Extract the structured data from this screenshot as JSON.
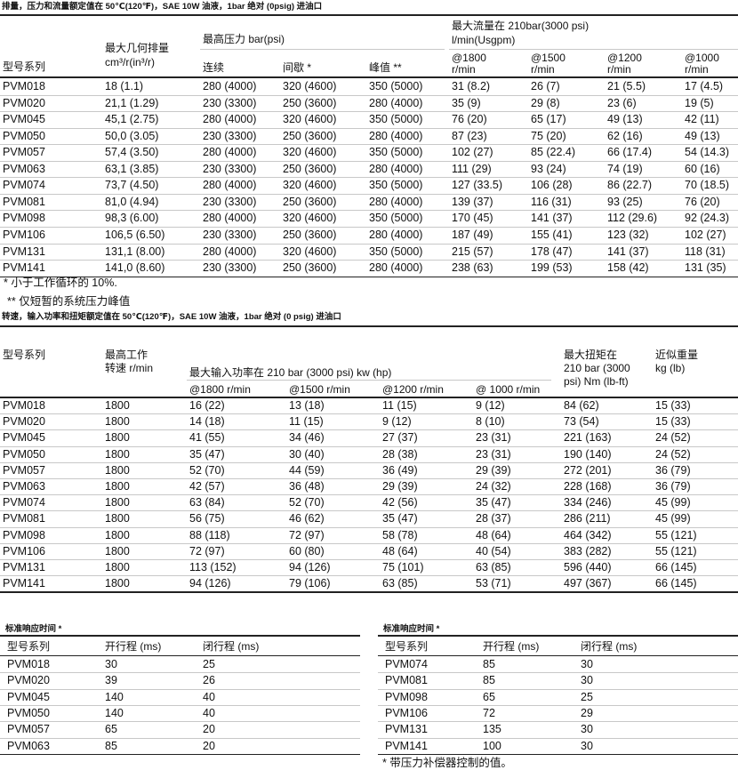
{
  "table1": {
    "caption": "排量，压力和流量额定值在 50℃(120℉)，SAE 10W 油液，1bar 绝对 (0psig) 进油口",
    "headers": {
      "model": "型号系列",
      "displacement": [
        "最大几何排量",
        "cm³/r(in³/r)"
      ],
      "pressure": "最高压力 bar(psi)",
      "continuous": "连续",
      "intermittent": "间歇 *",
      "peak": "峰值 **",
      "flow": [
        "最大流量在 210bar(3000 psi)",
        "l/min(Usgpm)"
      ],
      "flow_speeds": [
        [
          "@1800",
          "r/min"
        ],
        [
          "@1500",
          "r/min"
        ],
        [
          "@1200",
          "r/min"
        ],
        [
          "@1000",
          "r/min"
        ]
      ]
    },
    "rows": [
      [
        "PVM018",
        "18 (1.1)",
        "280 (4000)",
        "320 (4600)",
        "350 (5000)",
        "31 (8.2)",
        "26 (7)",
        "21 (5.5)",
        "17 (4.5)"
      ],
      [
        "PVM020",
        "21,1 (1.29)",
        "230 (3300)",
        "250 (3600)",
        "280 (4000)",
        "35 (9)",
        "29 (8)",
        "23 (6)",
        "19 (5)"
      ],
      [
        "PVM045",
        "45,1 (2.75)",
        "280 (4000)",
        "320 (4600)",
        "350 (5000)",
        "76 (20)",
        "65 (17)",
        "49 (13)",
        "42 (11)"
      ],
      [
        "PVM050",
        "50,0 (3.05)",
        "230 (3300)",
        "250 (3600)",
        "280 (4000)",
        "87 (23)",
        "75 (20)",
        "62 (16)",
        "49 (13)"
      ],
      [
        "PVM057",
        "57,4 (3.50)",
        "280 (4000)",
        "320 (4600)",
        "350 (5000)",
        "102 (27)",
        "85 (22.4)",
        "66 (17.4)",
        "54 (14.3)"
      ],
      [
        "PVM063",
        "63,1 (3.85)",
        "230 (3300)",
        "250 (3600)",
        "280 (4000)",
        "111 (29)",
        "93 (24)",
        "74 (19)",
        "60 (16)"
      ],
      [
        "PVM074",
        "73,7 (4.50)",
        "280 (4000)",
        "320 (4600)",
        "350 (5000)",
        "127 (33.5)",
        "106 (28)",
        "86 (22.7)",
        "70 (18.5)"
      ],
      [
        "PVM081",
        "81,0 (4.94)",
        "230 (3300)",
        "250 (3600)",
        "280 (4000)",
        "139 (37)",
        "116 (31)",
        "93 (25)",
        "76 (20)"
      ],
      [
        "PVM098",
        "98,3 (6.00)",
        "280 (4000)",
        "320 (4600)",
        "350 (5000)",
        "170 (45)",
        "141 (37)",
        "112 (29.6)",
        "92 (24.3)"
      ],
      [
        "PVM106",
        "106,5 (6.50)",
        "230 (3300)",
        "250 (3600)",
        "280 (4000)",
        "187 (49)",
        "155 (41)",
        "123 (32)",
        "102 (27)"
      ],
      [
        "PVM131",
        "131,1 (8.00)",
        "280 (4000)",
        "320 (4600)",
        "350 (5000)",
        "215 (57)",
        "178 (47)",
        "141 (37)",
        "118 (31)"
      ],
      [
        "PVM141",
        "141,0 (8.60)",
        "230 (3300)",
        "250 (3600)",
        "280 (4000)",
        "238 (63)",
        "199 (53)",
        "158 (42)",
        "131 (35)"
      ]
    ],
    "notes": [
      "* 小于工作循环的 10%.",
      "** 仅短暂的系统压力峰值"
    ]
  },
  "table2": {
    "caption": "转速，输入功率和扭矩额定值在 50℃(120℉)，SAE 10W 油液，1bar 绝对 (0 psig) 进油口",
    "headers": {
      "model": "型号系列",
      "speed": [
        "最高工作",
        "转速 r/min"
      ],
      "power": "最大输入功率在 210 bar (3000 psi) kw (hp)",
      "power_speeds": [
        "@1800 r/min",
        "@1500 r/min",
        "@1200 r/min",
        "@ 1000 r/min"
      ],
      "torque": [
        "最大扭矩在",
        "210 bar (3000",
        "psi) Nm (lb-ft)"
      ],
      "weight": [
        "近似重量",
        "kg (lb)"
      ]
    },
    "rows": [
      [
        "PVM018",
        "1800",
        "16 (22)",
        "13 (18)",
        "11 (15)",
        "9 (12)",
        "84 (62)",
        "15 (33)"
      ],
      [
        "PVM020",
        "1800",
        "14 (18)",
        "11 (15)",
        "9 (12)",
        "8 (10)",
        "73 (54)",
        "15 (33)"
      ],
      [
        "PVM045",
        "1800",
        "41 (55)",
        "34 (46)",
        "27 (37)",
        "23 (31)",
        "221 (163)",
        "24 (52)"
      ],
      [
        "PVM050",
        "1800",
        "35 (47)",
        "30 (40)",
        "28 (38)",
        "23 (31)",
        "190 (140)",
        "24 (52)"
      ],
      [
        "PVM057",
        "1800",
        "52 (70)",
        "44 (59)",
        "36 (49)",
        "29 (39)",
        "272 (201)",
        "36 (79)"
      ],
      [
        "PVM063",
        "1800",
        "42 (57)",
        "36 (48)",
        "29 (39)",
        "24 (32)",
        "228 (168)",
        "36 (79)"
      ],
      [
        "PVM074",
        "1800",
        "63 (84)",
        "52 (70)",
        "42 (56)",
        "35 (47)",
        "334 (246)",
        "45 (99)"
      ],
      [
        "PVM081",
        "1800",
        "56 (75)",
        "46 (62)",
        "35 (47)",
        "28 (37)",
        "286 (211)",
        "45 (99)"
      ],
      [
        "PVM098",
        "1800",
        "88 (118)",
        "72 (97)",
        "58 (78)",
        "48 (64)",
        "464 (342)",
        "55 (121)"
      ],
      [
        "PVM106",
        "1800",
        "72 (97)",
        "60 (80)",
        "48 (64)",
        "40 (54)",
        "383 (282)",
        "55 (121)"
      ],
      [
        "PVM131",
        "1800",
        "113 (152)",
        "94 (126)",
        "75 (101)",
        "63 (85)",
        "596 (440)",
        "66 (145)"
      ],
      [
        "PVM141",
        "1800",
        "94 (126)",
        "79 (106)",
        "63 (85)",
        "53 (71)",
        "497 (367)",
        "66 (145)"
      ]
    ]
  },
  "table3": {
    "caption": "标准响应时间 *",
    "headers": [
      "型号系列",
      "开行程 (ms)",
      "闭行程 (ms)"
    ],
    "rows": [
      [
        "PVM018",
        "30",
        "25"
      ],
      [
        "PVM020",
        "39",
        "26"
      ],
      [
        "PVM045",
        "140",
        "40"
      ],
      [
        "PVM050",
        "140",
        "40"
      ],
      [
        "PVM057",
        "65",
        "20"
      ],
      [
        "PVM063",
        "85",
        "20"
      ]
    ]
  },
  "table4": {
    "caption": "标准响应时间 *",
    "headers": [
      "型号系列",
      "开行程 (ms)",
      "闭行程 (ms)"
    ],
    "rows": [
      [
        "PVM074",
        "85",
        "30"
      ],
      [
        "PVM081",
        "85",
        "30"
      ],
      [
        "PVM098",
        "65",
        "25"
      ],
      [
        "PVM106",
        "72",
        "29"
      ],
      [
        "PVM131",
        "135",
        "30"
      ],
      [
        "PVM141",
        "100",
        "30"
      ]
    ],
    "note": "* 带压力补偿器控制的值。"
  }
}
